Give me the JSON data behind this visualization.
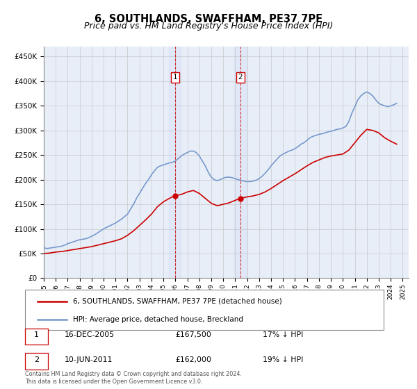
{
  "title": "6, SOUTHLANDS, SWAFFHAM, PE37 7PE",
  "subtitle": "Price paid vs. HM Land Registry's House Price Index (HPI)",
  "title_fontsize": 10.5,
  "subtitle_fontsize": 9,
  "background_color": "#ffffff",
  "plot_bg_color": "#e8eef8",
  "grid_color": "#c8c8c8",
  "ylim": [
    0,
    470000
  ],
  "yticks": [
    0,
    50000,
    100000,
    150000,
    200000,
    250000,
    300000,
    350000,
    400000,
    450000
  ],
  "ytick_labels": [
    "£0",
    "£50K",
    "£100K",
    "£150K",
    "£200K",
    "£250K",
    "£300K",
    "£350K",
    "£400K",
    "£450K"
  ],
  "xlim_start": 1995.0,
  "xlim_end": 2025.5,
  "property_color": "#cc0000",
  "hpi_color": "#7799cc",
  "transaction1_date": "16-DEC-2005",
  "transaction1_price": "£167,500",
  "transaction1_hpi": "17% ↓ HPI",
  "transaction1_x": 2005.96,
  "transaction1_y": 167500,
  "transaction2_date": "10-JUN-2011",
  "transaction2_price": "£162,000",
  "transaction2_hpi": "19% ↓ HPI",
  "transaction2_x": 2011.44,
  "transaction2_y": 162000,
  "vline1_x": 2005.96,
  "vline2_x": 2011.44,
  "legend_label_property": "6, SOUTHLANDS, SWAFFHAM, PE37 7PE (detached house)",
  "legend_label_hpi": "HPI: Average price, detached house, Breckland",
  "footer_text": "Contains HM Land Registry data © Crown copyright and database right 2024.\nThis data is licensed under the Open Government Licence v3.0.",
  "hpi_data": {
    "years": [
      1995.0,
      1995.25,
      1995.5,
      1995.75,
      1996.0,
      1996.25,
      1996.5,
      1996.75,
      1997.0,
      1997.25,
      1997.5,
      1997.75,
      1998.0,
      1998.25,
      1998.5,
      1998.75,
      1999.0,
      1999.25,
      1999.5,
      1999.75,
      2000.0,
      2000.25,
      2000.5,
      2000.75,
      2001.0,
      2001.25,
      2001.5,
      2001.75,
      2002.0,
      2002.25,
      2002.5,
      2002.75,
      2003.0,
      2003.25,
      2003.5,
      2003.75,
      2004.0,
      2004.25,
      2004.5,
      2004.75,
      2005.0,
      2005.25,
      2005.5,
      2005.75,
      2006.0,
      2006.25,
      2006.5,
      2006.75,
      2007.0,
      2007.25,
      2007.5,
      2007.75,
      2008.0,
      2008.25,
      2008.5,
      2008.75,
      2009.0,
      2009.25,
      2009.5,
      2009.75,
      2010.0,
      2010.25,
      2010.5,
      2010.75,
      2011.0,
      2011.25,
      2011.5,
      2011.75,
      2012.0,
      2012.25,
      2012.5,
      2012.75,
      2013.0,
      2013.25,
      2013.5,
      2013.75,
      2014.0,
      2014.25,
      2014.5,
      2014.75,
      2015.0,
      2015.25,
      2015.5,
      2015.75,
      2016.0,
      2016.25,
      2016.5,
      2016.75,
      2017.0,
      2017.25,
      2017.5,
      2017.75,
      2018.0,
      2018.25,
      2018.5,
      2018.75,
      2019.0,
      2019.25,
      2019.5,
      2019.75,
      2020.0,
      2020.25,
      2020.5,
      2020.75,
      2021.0,
      2021.25,
      2021.5,
      2021.75,
      2022.0,
      2022.25,
      2022.5,
      2022.75,
      2023.0,
      2023.25,
      2023.5,
      2023.75,
      2024.0,
      2024.25,
      2024.5
    ],
    "values": [
      62000,
      60000,
      61000,
      62000,
      63000,
      64000,
      65000,
      67000,
      70000,
      72000,
      74000,
      76000,
      78000,
      79000,
      80000,
      82000,
      85000,
      88000,
      92000,
      96000,
      100000,
      103000,
      106000,
      109000,
      112000,
      116000,
      120000,
      125000,
      130000,
      140000,
      150000,
      162000,
      172000,
      182000,
      192000,
      200000,
      210000,
      218000,
      225000,
      228000,
      230000,
      232000,
      234000,
      235000,
      238000,
      243000,
      248000,
      252000,
      255000,
      258000,
      258000,
      255000,
      248000,
      238000,
      228000,
      215000,
      205000,
      200000,
      198000,
      200000,
      203000,
      205000,
      205000,
      204000,
      202000,
      200000,
      198000,
      197000,
      196000,
      196000,
      197000,
      199000,
      202000,
      207000,
      213000,
      220000,
      228000,
      235000,
      242000,
      248000,
      252000,
      255000,
      258000,
      260000,
      263000,
      267000,
      272000,
      275000,
      280000,
      285000,
      288000,
      290000,
      292000,
      293000,
      295000,
      297000,
      298000,
      300000,
      302000,
      303000,
      305000,
      308000,
      318000,
      335000,
      348000,
      362000,
      370000,
      375000,
      378000,
      375000,
      370000,
      362000,
      355000,
      352000,
      350000,
      348000,
      350000,
      352000,
      355000
    ]
  },
  "property_data": {
    "years": [
      1995.0,
      1995.5,
      1996.0,
      1996.5,
      1997.0,
      1997.5,
      1998.0,
      1998.5,
      1999.0,
      1999.5,
      2000.0,
      2000.5,
      2001.0,
      2001.5,
      2002.0,
      2002.5,
      2003.0,
      2003.5,
      2004.0,
      2004.5,
      2005.0,
      2005.5,
      2005.96,
      2006.5,
      2007.0,
      2007.5,
      2008.0,
      2008.5,
      2009.0,
      2009.5,
      2010.0,
      2010.5,
      2011.0,
      2011.44,
      2012.0,
      2012.5,
      2013.0,
      2013.5,
      2014.0,
      2014.5,
      2015.0,
      2015.5,
      2016.0,
      2016.5,
      2017.0,
      2017.5,
      2018.0,
      2018.5,
      2019.0,
      2019.5,
      2020.0,
      2020.5,
      2021.0,
      2021.5,
      2022.0,
      2022.5,
      2023.0,
      2023.5,
      2024.0,
      2024.5
    ],
    "values": [
      50000,
      51000,
      53000,
      54000,
      56000,
      58000,
      60000,
      62000,
      64000,
      67000,
      70000,
      73000,
      76000,
      80000,
      87000,
      96000,
      107000,
      118000,
      130000,
      145000,
      155000,
      162000,
      167500,
      170000,
      175000,
      178000,
      172000,
      162000,
      152000,
      147000,
      150000,
      153000,
      158000,
      162000,
      165000,
      167000,
      170000,
      175000,
      182000,
      190000,
      198000,
      205000,
      212000,
      220000,
      228000,
      235000,
      240000,
      245000,
      248000,
      250000,
      252000,
      260000,
      275000,
      290000,
      302000,
      300000,
      295000,
      285000,
      278000,
      272000
    ]
  }
}
